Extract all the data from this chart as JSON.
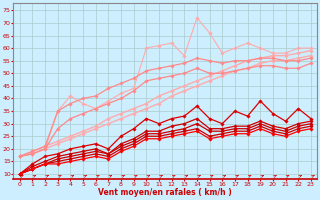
{
  "bg_color": "#cceeff",
  "grid_color": "#aacccc",
  "xlabel": "Vent moyen/en rafales ( km/h )",
  "xlabel_color": "#cc0000",
  "tick_color": "#cc0000",
  "x_ticks": [
    0,
    1,
    2,
    3,
    4,
    5,
    6,
    7,
    8,
    9,
    10,
    11,
    12,
    13,
    14,
    15,
    16,
    17,
    18,
    19,
    20,
    21,
    22,
    23
  ],
  "y_ticks": [
    10,
    15,
    20,
    25,
    30,
    35,
    40,
    45,
    50,
    55,
    60,
    65,
    70,
    75
  ],
  "ylim": [
    8,
    78
  ],
  "xlim": [
    -0.5,
    23.5
  ],
  "lines": [
    {
      "color": "#ffaaaa",
      "linewidth": 1.0,
      "marker": "D",
      "markersize": 1.8,
      "y": [
        17,
        19,
        21,
        23,
        25,
        27,
        29,
        32,
        34,
        36,
        38,
        41,
        43,
        45,
        47,
        49,
        51,
        53,
        55,
        56,
        57,
        57,
        58,
        59
      ]
    },
    {
      "color": "#ffaaaa",
      "linewidth": 1.0,
      "marker": "D",
      "markersize": 1.8,
      "y": [
        17,
        18,
        20,
        22,
        24,
        26,
        28,
        30,
        32,
        34,
        36,
        38,
        41,
        43,
        45,
        47,
        49,
        51,
        52,
        54,
        55,
        55,
        56,
        57
      ]
    },
    {
      "color": "#ffaaaa",
      "linewidth": 0.8,
      "marker": "D",
      "markersize": 1.8,
      "y": [
        17,
        18,
        20,
        35,
        41,
        38,
        36,
        39,
        42,
        44,
        60,
        61,
        62,
        57,
        72,
        66,
        58,
        60,
        62,
        60,
        58,
        58,
        60,
        60
      ]
    },
    {
      "color": "#ff8888",
      "linewidth": 0.9,
      "marker": "D",
      "markersize": 1.8,
      "y": [
        17,
        19,
        21,
        35,
        38,
        40,
        41,
        44,
        46,
        48,
        51,
        52,
        53,
        54,
        56,
        55,
        54,
        55,
        55,
        56,
        56,
        55,
        55,
        56
      ]
    },
    {
      "color": "#ff8888",
      "linewidth": 0.9,
      "marker": "D",
      "markersize": 1.8,
      "y": [
        17,
        18,
        20,
        28,
        32,
        34,
        36,
        38,
        40,
        43,
        47,
        48,
        49,
        50,
        52,
        50,
        50,
        51,
        52,
        53,
        53,
        52,
        52,
        54
      ]
    },
    {
      "color": "#dd0000",
      "linewidth": 0.9,
      "marker": "D",
      "markersize": 1.8,
      "y": [
        10,
        14,
        17,
        18,
        20,
        21,
        22,
        20,
        25,
        28,
        32,
        30,
        32,
        33,
        37,
        32,
        30,
        35,
        33,
        39,
        34,
        31,
        36,
        32
      ]
    },
    {
      "color": "#cc0000",
      "linewidth": 0.9,
      "marker": "D",
      "markersize": 1.8,
      "y": [
        10,
        13,
        15,
        17,
        18,
        19,
        20,
        18,
        22,
        24,
        27,
        27,
        29,
        30,
        32,
        28,
        28,
        29,
        29,
        31,
        29,
        28,
        30,
        31
      ]
    },
    {
      "color": "#cc0000",
      "linewidth": 0.9,
      "marker": "D",
      "markersize": 1.8,
      "y": [
        10,
        12,
        14,
        16,
        17,
        18,
        19,
        18,
        21,
        23,
        26,
        26,
        27,
        28,
        30,
        27,
        27,
        28,
        28,
        30,
        28,
        27,
        29,
        30
      ]
    },
    {
      "color": "#cc0000",
      "linewidth": 0.9,
      "marker": "D",
      "markersize": 1.8,
      "y": [
        10,
        12,
        14,
        15,
        16,
        17,
        18,
        17,
        20,
        22,
        25,
        25,
        26,
        27,
        28,
        25,
        26,
        27,
        27,
        29,
        27,
        26,
        28,
        29
      ]
    },
    {
      "color": "#ff0000",
      "linewidth": 0.9,
      "marker": "D",
      "markersize": 1.8,
      "y": [
        10,
        12,
        14,
        14,
        15,
        16,
        17,
        16,
        19,
        21,
        24,
        24,
        25,
        26,
        27,
        24,
        25,
        26,
        26,
        28,
        26,
        25,
        27,
        28
      ]
    }
  ]
}
